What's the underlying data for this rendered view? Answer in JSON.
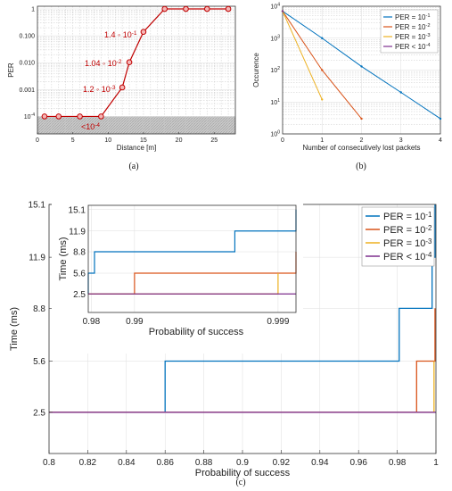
{
  "chart_data": [
    {
      "type": "line",
      "panel": "a",
      "caption": "(a)",
      "xlabel": "Distance [m]",
      "ylabel": "PER",
      "xlim": [
        0,
        28
      ],
      "xticks": [
        "0",
        "5",
        "10",
        "15",
        "20",
        "25"
      ],
      "yscale": "log",
      "ytick_labels": [
        "10^-4",
        "0.001",
        "0.010",
        "0.100",
        "1"
      ],
      "grid": true,
      "shaded_region_label": "<10^-4",
      "series": [
        {
          "color": "#c00000",
          "x": [
            1,
            3,
            6,
            9,
            12,
            13,
            15,
            18,
            21,
            24,
            27
          ],
          "y": [
            0.0001,
            0.0001,
            0.0001,
            0.0001,
            0.0012,
            0.0104,
            0.14,
            1,
            1,
            1,
            1
          ]
        }
      ],
      "annotations": [
        "1.4 ◦ 10^-1",
        "1.04 ◦ 10^-2",
        "1.2 ◦ 10^-3",
        "<10^-4"
      ]
    },
    {
      "type": "line",
      "panel": "b",
      "caption": "(b)",
      "xlabel": "Number of consecutively lost packets",
      "ylabel": "Occurence",
      "xlim": [
        0,
        4
      ],
      "xticks": [
        "0",
        "1",
        "2",
        "3",
        "4"
      ],
      "yscale": "log",
      "ytick_labels": [
        "10^0",
        "10^1",
        "10^2",
        "10^3",
        "10^4"
      ],
      "grid": true,
      "legend": "top-right",
      "series": [
        {
          "name": "PER = 10^-1",
          "color": "#0072bd",
          "x": [
            0,
            1,
            2,
            3,
            4
          ],
          "y": [
            7000,
            1000,
            130,
            20,
            3
          ]
        },
        {
          "name": "PER = 10^-2",
          "color": "#d95319",
          "x": [
            0,
            1,
            2
          ],
          "y": [
            7000,
            100,
            3
          ]
        },
        {
          "name": "PER = 10^-3",
          "color": "#edb120",
          "x": [
            0,
            1
          ],
          "y": [
            7000,
            12
          ]
        },
        {
          "name": "PER < 10^-4",
          "color": "#7e2f8e",
          "x": [
            0
          ],
          "y": [
            7000
          ]
        }
      ]
    },
    {
      "type": "line",
      "panel": "c",
      "caption": "(c)",
      "xlabel": "Probability of success",
      "ylabel": "Time (ms)",
      "xlim": [
        0.8,
        1
      ],
      "xticks": [
        "0.8",
        "0.82",
        "0.84",
        "0.86",
        "0.88",
        "0.9",
        "0.92",
        "0.94",
        "0.96",
        "0.98",
        "1"
      ],
      "ylim": [
        0,
        15.1
      ],
      "yticks": [
        "2.5",
        "5.6",
        "8.8",
        "11.9",
        "15.1"
      ],
      "grid": true,
      "legend": "top-right",
      "series": [
        {
          "name": "PER = 10^-1",
          "color": "#0072bd",
          "x": [
            0.8,
            0.86,
            0.86,
            0.981,
            0.981,
            0.998,
            0.998,
            0.9995,
            0.9995
          ],
          "y": [
            2.5,
            2.5,
            5.6,
            5.6,
            8.8,
            8.8,
            11.9,
            11.9,
            15.1
          ]
        },
        {
          "name": "PER = 10^-2",
          "color": "#d95319",
          "x": [
            0.8,
            0.99,
            0.99,
            0.9995,
            0.9995
          ],
          "y": [
            2.5,
            2.5,
            5.6,
            5.6,
            8.8
          ]
        },
        {
          "name": "PER = 10^-3",
          "color": "#edb120",
          "x": [
            0.8,
            0.999,
            0.999
          ],
          "y": [
            2.5,
            2.5,
            5.6
          ]
        },
        {
          "name": "PER < 10^-4",
          "color": "#7e2f8e",
          "x": [
            0.8,
            1
          ],
          "y": [
            2.5,
            2.5
          ]
        }
      ],
      "inset": {
        "xlabel": "Probability of success",
        "ylabel": "Time (ms)",
        "xscale": "log-nines",
        "xticks": [
          "0.98",
          "0.99",
          "0.999"
        ],
        "yticks": [
          "2.5",
          "5.6",
          "8.8",
          "11.9",
          "15.1"
        ]
      }
    }
  ]
}
